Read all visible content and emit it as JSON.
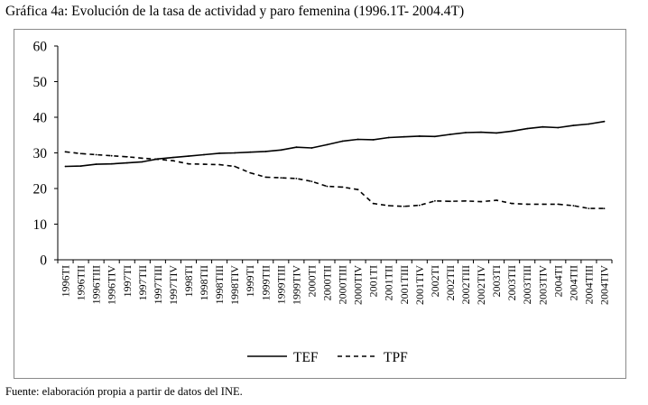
{
  "title": "Gráfica 4a: Evolución de la tasa de actividad y paro femenina (1996.1T- 2004.4T)",
  "source": "Fuente: elaboración propia a partir de datos del INE.",
  "chart_data": {
    "type": "line",
    "title": "Gráfica 4a: Evolución de la tasa de actividad y paro femenina (1996.1T- 2004.4T)",
    "xlabel": "",
    "ylabel": "",
    "ylim": [
      0,
      60
    ],
    "yticks": [
      0,
      10,
      20,
      30,
      40,
      50,
      60
    ],
    "grid": false,
    "legend_position": "bottom",
    "categories": [
      "1996TI",
      "1996TII",
      "1996TIII",
      "1996TIV",
      "1997TI",
      "1997TII",
      "1997TIII",
      "1997TIV",
      "1998TI",
      "1998TII",
      "1998TIII",
      "1998TIV",
      "1999TI",
      "1999TII",
      "1999TIII",
      "1999TIV",
      "2000TI",
      "2000TII",
      "2000TIII",
      "2000TIV",
      "2001TI",
      "2001TII",
      "2001TIII",
      "2001TIV",
      "2002TI",
      "2002TII",
      "2002TIII",
      "2002TIV",
      "2003TI",
      "2003TII",
      "2003TIII",
      "2003TIV",
      "2004TI",
      "2004TII",
      "2004TIII",
      "2004TIV"
    ],
    "series": [
      {
        "name": "TEF",
        "style": "solid",
        "color": "#000000",
        "values": [
          26.2,
          26.3,
          26.8,
          26.9,
          27.2,
          27.5,
          28.3,
          28.7,
          29.1,
          29.5,
          29.9,
          30.0,
          30.2,
          30.4,
          30.8,
          31.6,
          31.4,
          32.3,
          33.3,
          33.8,
          33.7,
          34.3,
          34.5,
          34.7,
          34.6,
          35.2,
          35.7,
          35.8,
          35.6,
          36.1,
          36.8,
          37.3,
          37.1,
          37.7,
          38.1,
          38.8
        ]
      },
      {
        "name": "TPF",
        "style": "dashed",
        "color": "#000000",
        "values": [
          30.3,
          29.8,
          29.5,
          29.2,
          28.9,
          28.5,
          28.2,
          27.8,
          26.9,
          26.8,
          26.7,
          26.2,
          24.4,
          23.2,
          23.0,
          22.8,
          22.0,
          20.6,
          20.4,
          19.7,
          15.8,
          15.2,
          15.0,
          15.3,
          16.5,
          16.4,
          16.5,
          16.3,
          16.7,
          15.8,
          15.6,
          15.6,
          15.6,
          15.2,
          14.4,
          14.4
        ]
      }
    ]
  }
}
